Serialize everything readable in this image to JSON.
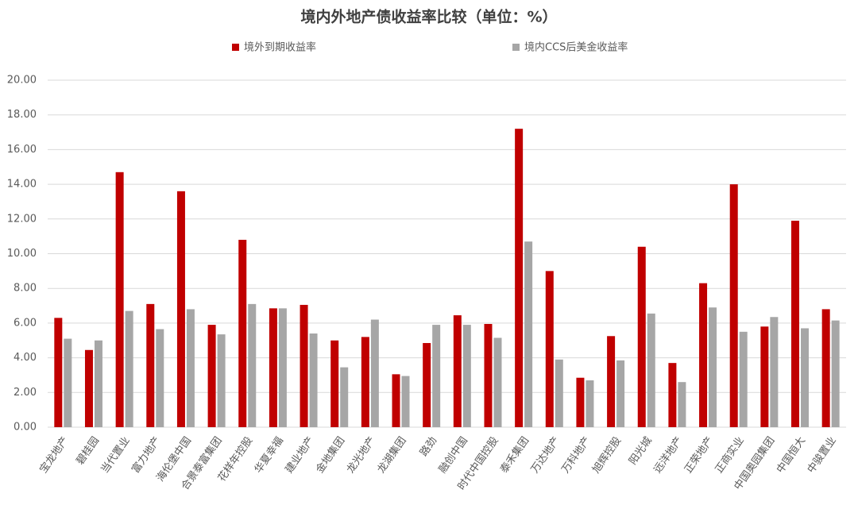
{
  "chart_data": {
    "type": "bar",
    "title": "境内外地产债收益率比较（单位：%）",
    "categories": [
      "宝龙地产",
      "碧桂园",
      "当代置业",
      "富力地产",
      "海伦堡中国",
      "合景泰富集团",
      "花样年控股",
      "华夏幸福",
      "建业地产",
      "金地集团",
      "龙光地产",
      "龙湖集团",
      "路劲",
      "融创中国",
      "时代中国控股",
      "泰禾集团",
      "万达地产",
      "万科地产",
      "旭辉控股",
      "阳光城",
      "远洋地产",
      "正荣地产",
      "正商实业",
      "中国奥园集团",
      "中国恒大",
      "中骏置业"
    ],
    "series": [
      {
        "name": "境外到期收益率",
        "color": "#c00000",
        "values": [
          6.3,
          4.45,
          14.7,
          7.1,
          13.6,
          5.9,
          10.8,
          6.85,
          7.05,
          5.0,
          5.2,
          3.05,
          4.85,
          6.45,
          5.95,
          17.2,
          9.0,
          2.85,
          5.25,
          10.4,
          3.7,
          8.3,
          14.0,
          5.8,
          11.9,
          6.8
        ]
      },
      {
        "name": "境内CCS后美金收益率",
        "color": "#a6a6a6",
        "values": [
          5.1,
          5.0,
          6.7,
          5.65,
          6.8,
          5.35,
          7.1,
          6.85,
          5.4,
          3.45,
          6.2,
          2.95,
          5.9,
          5.9,
          5.15,
          10.7,
          3.9,
          2.7,
          3.85,
          6.55,
          2.6,
          6.9,
          5.5,
          6.35,
          5.7,
          6.15
        ]
      }
    ],
    "ylim": [
      0,
      20
    ],
    "yticks": [
      {
        "value": 0,
        "label": "0.00"
      },
      {
        "value": 2,
        "label": "2.00"
      },
      {
        "value": 4,
        "label": "4.00"
      },
      {
        "value": 6,
        "label": "6.00"
      },
      {
        "value": 8,
        "label": "8.00"
      },
      {
        "value": 10,
        "label": "10.00"
      },
      {
        "value": 12,
        "label": "12.00"
      },
      {
        "value": 14,
        "label": "14.00"
      },
      {
        "value": 16,
        "label": "16.00"
      },
      {
        "value": 18,
        "label": "18.00"
      },
      {
        "value": 20,
        "label": "20.00"
      }
    ],
    "grid": true
  }
}
